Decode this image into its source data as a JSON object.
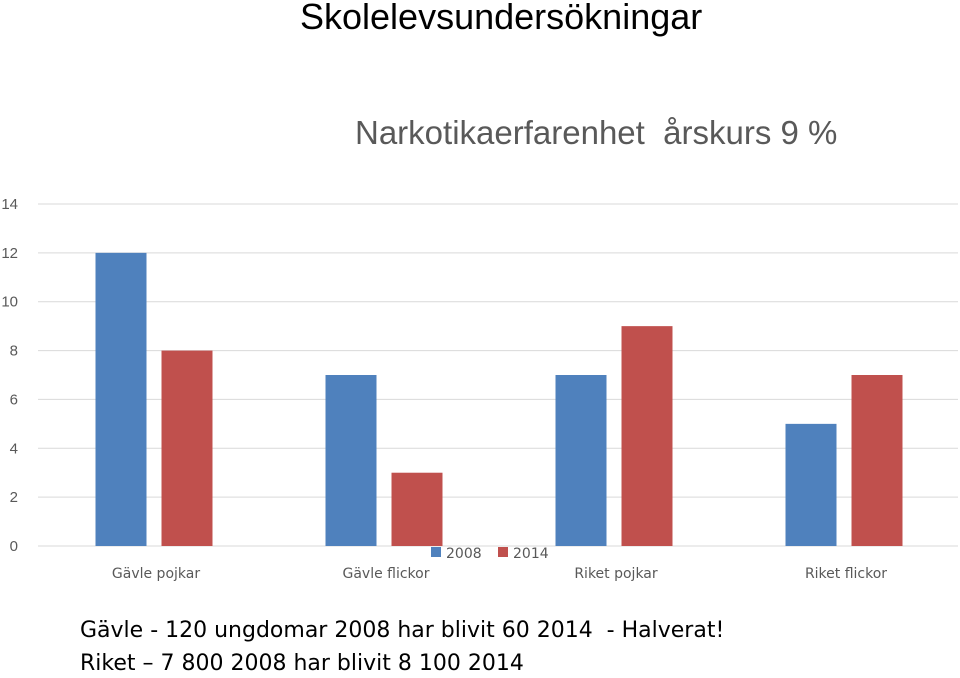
{
  "slide": {
    "title": "Skolelevsundersökningar",
    "notes": [
      "Gävle - 120 ungdomar 2008 har blivit 60 2014  - Halverat!",
      "Riket – 7 800 2008 har blivit 8 100 2014"
    ]
  },
  "chart_data": {
    "type": "bar",
    "title": "Narkotikaerfarenhet  årskurs 9 %",
    "categories": [
      "Gävle pojkar",
      "Gävle flickor",
      "Riket pojkar",
      "Riket flickor"
    ],
    "series": [
      {
        "name": "2008",
        "values": [
          12,
          7,
          7,
          5
        ],
        "color": "#4F81BD"
      },
      {
        "name": "2014",
        "values": [
          8,
          3,
          9,
          7
        ],
        "color": "#C0504D"
      }
    ],
    "ylim": [
      0,
      14
    ],
    "yticks": [
      0,
      2,
      4,
      6,
      8,
      10,
      12,
      14
    ],
    "grid": true,
    "legend_position": "bottom"
  }
}
